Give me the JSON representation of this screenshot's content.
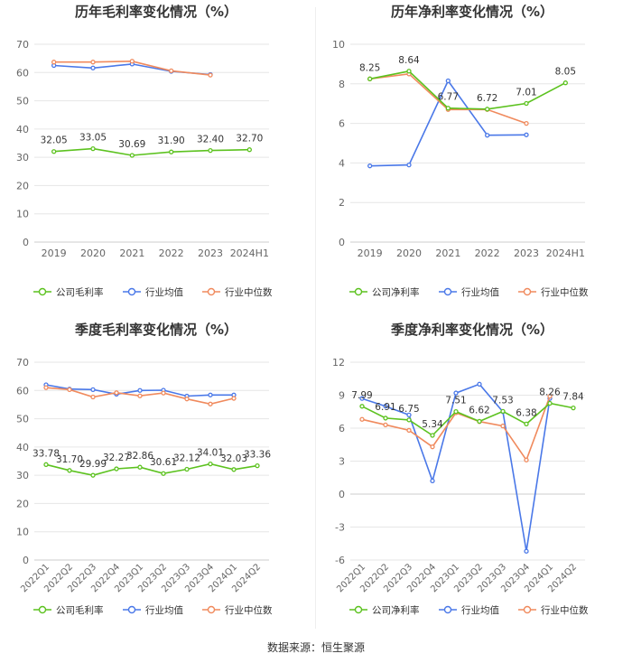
{
  "source_label": "数据来源：恒生聚源",
  "colors": {
    "company": "#5cc21f",
    "avg": "#4a78e8",
    "median": "#f08a5d",
    "grid": "#e6e6e6",
    "axis": "#cccccc",
    "tick": "#666666",
    "title": "#333333"
  },
  "chart_data": [
    {
      "type": "line",
      "title": "历年毛利率变化情况（%）",
      "categories": [
        "2019",
        "2020",
        "2021",
        "2022",
        "2023",
        "2024H1"
      ],
      "ylim": [
        0,
        70
      ],
      "yticks": [
        0,
        10,
        20,
        30,
        40,
        50,
        60,
        70
      ],
      "rotate_x": false,
      "series": [
        {
          "name": "公司毛利率",
          "role": "company",
          "values": [
            32.05,
            33.05,
            30.69,
            31.9,
            32.4,
            32.7
          ],
          "labels": [
            "32.05",
            "33.05",
            "30.69",
            "31.90",
            "32.40",
            "32.70"
          ]
        },
        {
          "name": "行业均值",
          "role": "avg",
          "values": [
            62.5,
            61.6,
            63.0,
            60.4,
            59.3,
            null
          ]
        },
        {
          "name": "行业中位数",
          "role": "median",
          "values": [
            63.7,
            63.7,
            64.0,
            60.6,
            59.1,
            null
          ]
        }
      ]
    },
    {
      "type": "line",
      "title": "历年净利率变化情况（%）",
      "categories": [
        "2019",
        "2020",
        "2021",
        "2022",
        "2023",
        "2024H1"
      ],
      "ylim": [
        0,
        10
      ],
      "yticks": [
        0,
        2,
        4,
        6,
        8,
        10
      ],
      "rotate_x": false,
      "series": [
        {
          "name": "公司净利率",
          "role": "company",
          "values": [
            8.25,
            8.64,
            6.77,
            6.72,
            7.01,
            8.05
          ],
          "labels": [
            "8.25",
            "8.64",
            "6.77",
            "6.72",
            "7.01",
            "8.05"
          ]
        },
        {
          "name": "行业均值",
          "role": "avg",
          "values": [
            3.85,
            3.9,
            8.15,
            5.4,
            5.42,
            null
          ]
        },
        {
          "name": "行业中位数",
          "role": "median",
          "values": [
            8.25,
            8.5,
            6.7,
            6.7,
            6.0,
            null
          ]
        }
      ]
    },
    {
      "type": "line",
      "title": "季度毛利率变化情况（%）",
      "categories": [
        "2022Q1",
        "2022Q2",
        "2022Q3",
        "2022Q4",
        "2023Q1",
        "2023Q2",
        "2023Q3",
        "2023Q4",
        "2024Q1",
        "2024Q2"
      ],
      "ylim": [
        0,
        70
      ],
      "yticks": [
        0,
        10,
        20,
        30,
        40,
        50,
        60,
        70
      ],
      "rotate_x": true,
      "series": [
        {
          "name": "公司毛利率",
          "role": "company",
          "values": [
            33.78,
            31.7,
            29.99,
            32.27,
            32.86,
            30.61,
            32.12,
            34.01,
            32.03,
            33.36
          ],
          "labels": [
            "33.78",
            "31.70",
            "29.99",
            "32.27",
            "32.86",
            "30.61",
            "32.12",
            "34.01",
            "32.03",
            "33.36"
          ]
        },
        {
          "name": "行业均值",
          "role": "avg",
          "values": [
            62.0,
            60.5,
            60.3,
            58.7,
            60.0,
            60.1,
            58.0,
            58.4,
            58.4,
            null
          ]
        },
        {
          "name": "行业中位数",
          "role": "median",
          "values": [
            61.0,
            60.3,
            57.7,
            59.2,
            58.1,
            59.1,
            57.0,
            55.2,
            57.2,
            null
          ]
        }
      ]
    },
    {
      "type": "line",
      "title": "季度净利率变化情况（%）",
      "categories": [
        "2022Q1",
        "2022Q2",
        "2022Q3",
        "2022Q4",
        "2023Q1",
        "2023Q2",
        "2023Q3",
        "2023Q4",
        "2024Q1",
        "2024Q2"
      ],
      "ylim": [
        -6,
        12
      ],
      "yticks": [
        -6,
        -3,
        0,
        3,
        6,
        9,
        12
      ],
      "rotate_x": true,
      "series": [
        {
          "name": "公司净利率",
          "role": "company",
          "values": [
            7.99,
            6.91,
            6.75,
            5.34,
            7.51,
            6.62,
            7.53,
            6.38,
            8.26,
            7.84
          ],
          "labels": [
            "7.99",
            "6.91",
            "6.75",
            "5.34",
            "7.51",
            "6.62",
            "7.53",
            "6.38",
            "8.26",
            "7.84"
          ]
        },
        {
          "name": "行业均值",
          "role": "avg",
          "values": [
            8.7,
            8.0,
            7.2,
            1.2,
            9.2,
            10.0,
            7.5,
            -5.2,
            8.7,
            null
          ]
        },
        {
          "name": "行业中位数",
          "role": "median",
          "values": [
            6.8,
            6.3,
            5.8,
            4.3,
            7.4,
            6.6,
            6.2,
            3.1,
            8.9,
            null
          ]
        }
      ]
    }
  ]
}
